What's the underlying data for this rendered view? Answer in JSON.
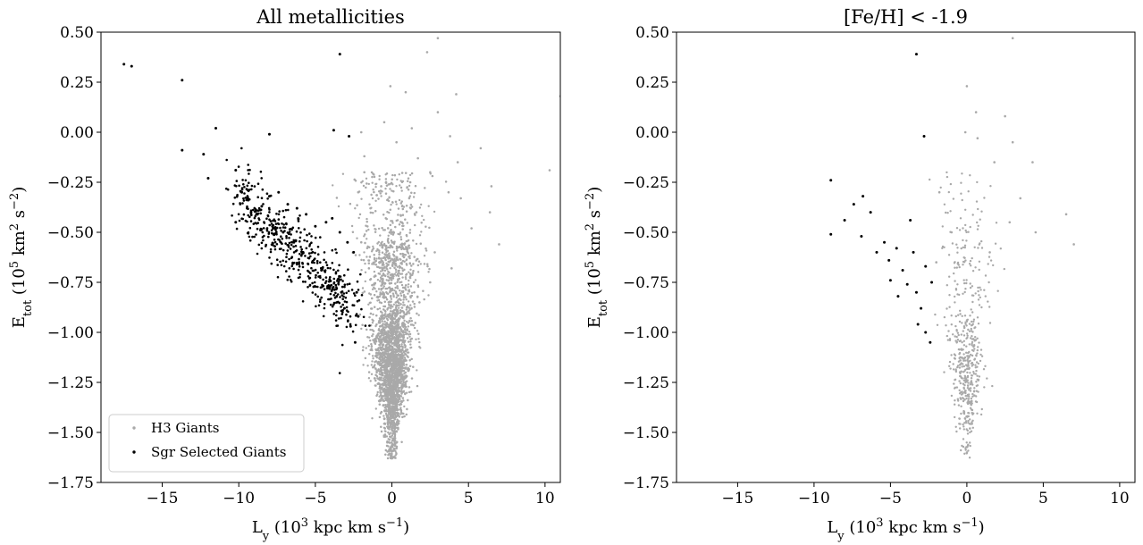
{
  "chart_data": [
    {
      "type": "scatter",
      "title": "All metallicities",
      "xlabel": "L_y (10^3 kpc km s^-1)",
      "ylabel": "E_tot (10^5 km^2 s^-2)",
      "xlim": [
        -19,
        11
      ],
      "ylim": [
        -1.75,
        0.5
      ],
      "xticks": [
        -15,
        -10,
        -5,
        0,
        5,
        10
      ],
      "yticks": [
        0.5,
        0.25,
        0.0,
        -0.25,
        -0.5,
        -0.75,
        -1.0,
        -1.25,
        -1.5,
        -1.75
      ],
      "xtick_labels": [
        "−15",
        "−10",
        "−5",
        "0",
        "5",
        "10"
      ],
      "ytick_labels": [
        "0.50",
        "0.25",
        "0.00",
        "−0.25",
        "−0.50",
        "−0.75",
        "−1.00",
        "−1.25",
        "−1.50",
        "−1.75"
      ],
      "legend": {
        "position": "lower left",
        "entries": [
          "H3 Giants",
          "Sgr Selected Giants"
        ]
      },
      "series": [
        {
          "name": "H3 Giants",
          "color": "#a9a9a9",
          "distribution": "dense vertical cone centered at L_y≈0, E_tot from -1.63 to -0.5, widening upward; sparse scatter up to E_tot≈0.47",
          "points": [
            [
              3.0,
              0.47
            ],
            [
              2.3,
              0.4
            ],
            [
              -0.1,
              0.23
            ],
            [
              0.9,
              0.2
            ],
            [
              4.2,
              0.19
            ],
            [
              11.0,
              0.18
            ],
            [
              3.0,
              0.1
            ],
            [
              -0.5,
              0.05
            ],
            [
              -2.0,
              0.0
            ],
            [
              1.3,
              0.02
            ],
            [
              3.8,
              -0.02
            ],
            [
              0.3,
              -0.05
            ],
            [
              5.8,
              -0.08
            ],
            [
              1.7,
              -0.13
            ],
            [
              -1.8,
              -0.12
            ],
            [
              4.3,
              -0.15
            ],
            [
              2.5,
              -0.2
            ],
            [
              10.3,
              -0.19
            ],
            [
              -1.8,
              -0.2
            ],
            [
              6.5,
              -0.27
            ],
            [
              -0.7,
              -0.27
            ],
            [
              1.2,
              -0.25
            ],
            [
              3.7,
              -0.3
            ],
            [
              4.5,
              -0.33
            ],
            [
              -2.2,
              -0.3
            ],
            [
              6.4,
              -0.4
            ],
            [
              -1.4,
              -0.38
            ],
            [
              1.6,
              -0.4
            ],
            [
              5.2,
              -0.48
            ],
            [
              7.0,
              -0.56
            ],
            [
              -2.0,
              -0.55
            ],
            [
              2.8,
              -0.6
            ],
            [
              3.9,
              -0.68
            ],
            [
              -1.5,
              -0.68
            ],
            [
              2.5,
              -0.75
            ],
            [
              -1.3,
              -0.83
            ],
            [
              1.8,
              -0.85
            ],
            [
              0.0,
              -1.63
            ],
            [
              0.3,
              -1.58
            ],
            [
              -0.3,
              -1.55
            ]
          ]
        },
        {
          "name": "Sgr Selected Giants",
          "color": "#000000",
          "distribution": "diagonal band from (L_y≈-10, E≈-0.4) to (L_y≈-2, E≈-1.05), densest near L_y -7 to -3, E -0.55 to -0.85",
          "points": [
            [
              -17.5,
              0.34
            ],
            [
              -17.0,
              0.33
            ],
            [
              -13.7,
              0.26
            ],
            [
              -3.4,
              0.39
            ],
            [
              -11.5,
              0.02
            ],
            [
              -8.0,
              -0.01
            ],
            [
              -3.8,
              0.01
            ],
            [
              -2.8,
              -0.02
            ],
            [
              -13.7,
              -0.09
            ],
            [
              -12.3,
              -0.11
            ],
            [
              -12.0,
              -0.23
            ],
            [
              -10.2,
              -0.19
            ],
            [
              -10.2,
              -0.45
            ],
            [
              -9.8,
              -0.3
            ],
            [
              -9.2,
              -0.4
            ],
            [
              -8.5,
              -0.37
            ],
            [
              -8.0,
              -0.32
            ],
            [
              -7.4,
              -0.3
            ],
            [
              -6.8,
              -0.36
            ],
            [
              -6.2,
              -0.38
            ],
            [
              -5.6,
              -0.41
            ],
            [
              -5.0,
              -0.47
            ],
            [
              -4.3,
              -0.45
            ],
            [
              -3.9,
              -0.43
            ],
            [
              -3.4,
              -0.5
            ],
            [
              -2.9,
              -0.55
            ],
            [
              -2.5,
              -0.6
            ],
            [
              -2.3,
              -0.8
            ],
            [
              -2.2,
              -0.92
            ],
            [
              -2.4,
              -1.05
            ],
            [
              -2.7,
              -0.97
            ],
            [
              -3.1,
              -0.88
            ],
            [
              -3.3,
              -0.8
            ],
            [
              -4.2,
              -0.77
            ],
            [
              -4.6,
              -0.69
            ],
            [
              -5.2,
              -0.65
            ],
            [
              -5.8,
              -0.6
            ],
            [
              -6.4,
              -0.55
            ],
            [
              -7.1,
              -0.5
            ],
            [
              -7.8,
              -0.47
            ]
          ]
        }
      ]
    },
    {
      "type": "scatter",
      "title": "[Fe/H] < -1.9",
      "xlabel": "L_y (10^3 kpc km s^-1)",
      "ylabel": "E_tot (10^5 km^2 s^-2)",
      "xlim": [
        -19,
        11
      ],
      "ylim": [
        -1.75,
        0.5
      ],
      "xticks": [
        -15,
        -10,
        -5,
        0,
        5,
        10
      ],
      "yticks": [
        0.5,
        0.25,
        0.0,
        -0.25,
        -0.5,
        -0.75,
        -1.0,
        -1.25,
        -1.5,
        -1.75
      ],
      "xtick_labels": [
        "−15",
        "−10",
        "−5",
        "0",
        "5",
        "10"
      ],
      "ytick_labels": [
        "0.50",
        "0.25",
        "0.00",
        "−0.25",
        "−0.50",
        "−0.75",
        "−1.00",
        "−1.25",
        "−1.50",
        "−1.75"
      ],
      "series": [
        {
          "name": "H3 Giants",
          "color": "#a9a9a9",
          "distribution": "sparser vertical cone centered at L_y≈0, E_tot from -1.6 to -0.6",
          "points": [
            [
              3.0,
              0.47
            ],
            [
              0.0,
              0.23
            ],
            [
              0.6,
              0.1
            ],
            [
              -0.1,
              0.0
            ],
            [
              2.5,
              0.08
            ],
            [
              0.7,
              -0.03
            ],
            [
              3.0,
              -0.05
            ],
            [
              1.8,
              -0.15
            ],
            [
              4.3,
              -0.15
            ],
            [
              -1.8,
              -0.3
            ],
            [
              3.5,
              -0.33
            ],
            [
              6.5,
              -0.41
            ],
            [
              2.8,
              -0.45
            ],
            [
              7.0,
              -0.56
            ],
            [
              -1.0,
              -0.5
            ],
            [
              4.5,
              -0.5
            ],
            [
              1.5,
              -0.6
            ],
            [
              -2.0,
              -0.65
            ],
            [
              0.0,
              -1.6
            ],
            [
              0.2,
              -1.48
            ]
          ]
        },
        {
          "name": "Sgr Selected Giants",
          "color": "#000000",
          "distribution": "sparse diagonal band from (L_y≈-9, E≈-0.25) to (L_y≈-2.4, E≈-1.05)",
          "points": [
            [
              -3.3,
              0.39
            ],
            [
              -2.8,
              -0.02
            ],
            [
              -8.9,
              -0.24
            ],
            [
              -8.9,
              -0.51
            ],
            [
              -8.0,
              -0.44
            ],
            [
              -7.4,
              -0.36
            ],
            [
              -6.8,
              -0.32
            ],
            [
              -6.9,
              -0.52
            ],
            [
              -6.3,
              -0.4
            ],
            [
              -5.9,
              -0.6
            ],
            [
              -5.4,
              -0.55
            ],
            [
              -5.1,
              -0.64
            ],
            [
              -5.0,
              -0.74
            ],
            [
              -4.6,
              -0.58
            ],
            [
              -4.5,
              -0.82
            ],
            [
              -4.2,
              -0.69
            ],
            [
              -3.9,
              -0.76
            ],
            [
              -3.5,
              -0.6
            ],
            [
              -3.7,
              -0.44
            ],
            [
              -3.3,
              -0.8
            ],
            [
              -3.2,
              -0.96
            ],
            [
              -3.0,
              -0.88
            ],
            [
              -2.7,
              -0.67
            ],
            [
              -2.7,
              -1.0
            ],
            [
              -2.4,
              -1.05
            ],
            [
              -2.3,
              -0.75
            ]
          ]
        }
      ]
    }
  ]
}
